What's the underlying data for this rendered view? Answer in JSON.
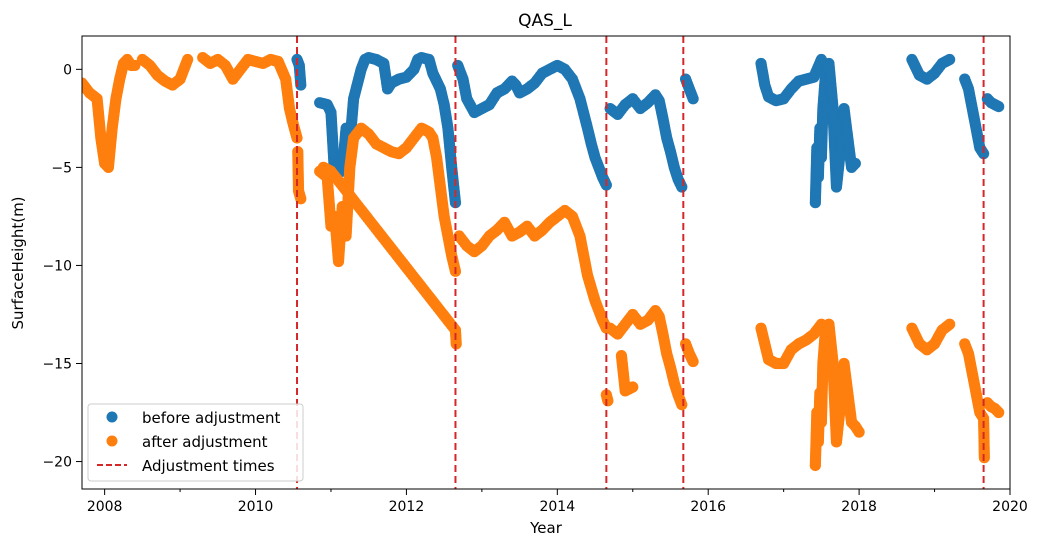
{
  "chart_data": {
    "type": "scatter",
    "title": "QAS_L",
    "xlabel": "Year",
    "ylabel": "SurfaceHeight(m)",
    "xlim": [
      2007.7,
      2020.0
    ],
    "ylim": [
      -21.4,
      1.7
    ],
    "x_ticks": [
      2008,
      2010,
      2012,
      2014,
      2016,
      2018,
      2020
    ],
    "x_tick_labels": [
      "2008",
      "2010",
      "2012",
      "2014",
      "2016",
      "2018",
      "2020"
    ],
    "y_ticks": [
      0,
      -5,
      -10,
      -15,
      -20
    ],
    "y_tick_labels": [
      "0",
      "−5",
      "−10",
      "−15",
      "−20"
    ],
    "legend_position": "lower-left",
    "legend": [
      {
        "label": "before adjustment",
        "color": "#1f77b4",
        "kind": "marker"
      },
      {
        "label": "after adjustment",
        "color": "#ff7f0e",
        "kind": "marker"
      },
      {
        "label": "Adjustment times",
        "color": "#d62728",
        "kind": "dashed-line"
      }
    ],
    "adjustment_times": [
      2010.55,
      2012.65,
      2014.65,
      2015.67,
      2019.65
    ],
    "series": [
      {
        "name": "before adjustment",
        "color": "#1f77b4",
        "segments": [
          {
            "x": [
              2010.55,
              2010.58,
              2010.6
            ],
            "y": [
              0.5,
              0.2,
              -0.8
            ]
          },
          {
            "x": [
              2010.85,
              2010.95,
              2011.0,
              2011.05,
              2011.1,
              2011.15,
              2011.2,
              2011.25,
              2011.3,
              2011.4,
              2011.45,
              2011.5,
              2011.6,
              2011.7,
              2011.75,
              2011.8,
              2011.9,
              2012.0,
              2012.1,
              2012.15,
              2012.2,
              2012.3,
              2012.35,
              2012.4,
              2012.45,
              2012.5,
              2012.55,
              2012.6,
              2012.65
            ],
            "y": [
              -1.7,
              -1.8,
              -2.2,
              -5.5,
              -4.5,
              -5.2,
              -3.0,
              -3.8,
              -1.5,
              0.0,
              0.5,
              0.6,
              0.5,
              0.3,
              -1.0,
              -0.7,
              -0.5,
              -0.4,
              0.0,
              0.5,
              0.6,
              0.5,
              -0.2,
              -0.6,
              -1.0,
              -1.8,
              -3.0,
              -5.0,
              -6.8
            ]
          },
          {
            "x": [
              2012.68,
              2012.7,
              2012.75,
              2012.8,
              2012.9,
              2013.0,
              2013.1,
              2013.2,
              2013.3,
              2013.4,
              2013.45,
              2013.5,
              2013.6,
              2013.7,
              2013.8,
              2013.9,
              2014.0,
              2014.1,
              2014.2,
              2014.3,
              2014.4,
              2014.45,
              2014.5,
              2014.55,
              2014.6,
              2014.65
            ],
            "y": [
              0.2,
              0.0,
              -0.5,
              -1.5,
              -2.2,
              -2.0,
              -1.8,
              -1.2,
              -1.0,
              -0.6,
              -0.8,
              -1.2,
              -1.0,
              -0.7,
              -0.2,
              0.0,
              0.2,
              0.0,
              -0.5,
              -1.5,
              -3.0,
              -3.8,
              -4.5,
              -5.0,
              -5.5,
              -5.9
            ]
          },
          {
            "x": [
              2014.7,
              2014.8,
              2014.9,
              2015.0,
              2015.1,
              2015.2,
              2015.3,
              2015.35,
              2015.4,
              2015.45,
              2015.5,
              2015.55,
              2015.6,
              2015.65
            ],
            "y": [
              -2.0,
              -2.3,
              -1.8,
              -1.5,
              -2.0,
              -1.7,
              -1.3,
              -1.6,
              -2.5,
              -3.5,
              -4.2,
              -5.0,
              -5.6,
              -6.0
            ]
          },
          {
            "x": [
              2015.7,
              2015.75,
              2015.8
            ],
            "y": [
              -0.5,
              -1.0,
              -1.5
            ]
          },
          {
            "x": [
              2016.7,
              2016.75,
              2016.8,
              2016.9,
              2017.0,
              2017.1,
              2017.2,
              2017.3,
              2017.4,
              2017.5
            ],
            "y": [
              0.3,
              -0.8,
              -1.4,
              -1.6,
              -1.5,
              -1.0,
              -0.6,
              -0.5,
              -0.4,
              0.5
            ]
          },
          {
            "x": [
              2017.42,
              2017.44,
              2017.46,
              2017.48,
              2017.5,
              2017.52,
              2017.55,
              2017.6,
              2017.65,
              2017.7,
              2017.75,
              2017.8,
              2017.85,
              2017.9,
              2017.95
            ],
            "y": [
              -6.8,
              -4.0,
              -5.5,
              -3.0,
              -4.5,
              -2.0,
              -0.5,
              0.3,
              -1.8,
              -6.0,
              -4.2,
              -2.0,
              -3.5,
              -5.0,
              -4.8
            ]
          },
          {
            "x": [
              2018.7,
              2018.8,
              2018.9,
              2019.0,
              2019.1,
              2019.2
            ],
            "y": [
              0.5,
              -0.3,
              -0.5,
              -0.2,
              0.3,
              0.5
            ]
          },
          {
            "x": [
              2019.4,
              2019.45,
              2019.5,
              2019.55,
              2019.6,
              2019.65
            ],
            "y": [
              -0.5,
              -1.0,
              -2.0,
              -3.0,
              -4.0,
              -4.3
            ]
          },
          {
            "x": [
              2019.7,
              2019.75,
              2019.8,
              2019.85
            ],
            "y": [
              -1.5,
              -1.7,
              -1.8,
              -1.9
            ]
          }
        ]
      },
      {
        "name": "after adjustment",
        "color": "#ff7f0e",
        "segments": [
          {
            "x": [
              2007.7,
              2007.8,
              2007.9,
              2007.95,
              2008.0,
              2008.05,
              2008.1,
              2008.15,
              2008.2,
              2008.25,
              2008.3,
              2008.35,
              2008.4
            ],
            "y": [
              -0.7,
              -1.2,
              -1.5,
              -3.5,
              -4.8,
              -5.0,
              -3.0,
              -1.5,
              -0.5,
              0.3,
              0.5,
              0.2,
              0.2
            ]
          },
          {
            "x": [
              2008.5,
              2008.6,
              2008.7,
              2008.8,
              2008.9,
              2009.0,
              2009.1
            ],
            "y": [
              0.5,
              0.2,
              -0.3,
              -0.6,
              -0.8,
              -0.5,
              0.5
            ]
          },
          {
            "x": [
              2009.3,
              2009.4,
              2009.5,
              2009.6,
              2009.7,
              2009.8,
              2009.9,
              2010.0,
              2010.1,
              2010.2,
              2010.3,
              2010.4,
              2010.45,
              2010.5,
              2010.55
            ],
            "y": [
              0.6,
              0.3,
              0.5,
              0.2,
              -0.5,
              0.0,
              0.5,
              0.4,
              0.3,
              0.5,
              0.4,
              -0.5,
              -2.0,
              -2.8,
              -3.5
            ]
          },
          {
            "x": [
              2010.56,
              2010.57,
              2010.6
            ],
            "y": [
              -4.2,
              -6.2,
              -6.6
            ]
          },
          {
            "x": [
              2010.85,
              2010.95,
              2011.0,
              2011.05,
              2011.1,
              2011.15,
              2011.2,
              2011.25,
              2011.3,
              2011.4,
              2011.5,
              2011.6,
              2011.7,
              2011.8,
              2011.9,
              2012.0,
              2012.1,
              2012.2,
              2012.3,
              2012.35,
              2012.4,
              2012.45,
              2012.5,
              2012.55,
              2012.6,
              2012.65
            ],
            "y": [
              -5.2,
              -5.5,
              -8.0,
              -7.5,
              -9.8,
              -7.0,
              -8.5,
              -5.0,
              -3.5,
              -3.0,
              -3.3,
              -3.8,
              -4.0,
              -4.2,
              -4.3,
              -4.0,
              -3.5,
              -3.0,
              -3.2,
              -3.5,
              -4.5,
              -6.0,
              -7.5,
              -8.5,
              -9.5,
              -10.3
            ]
          },
          {
            "x": [
              2010.9,
              2011.0,
              2012.65,
              2012.66
            ],
            "y": [
              -5.0,
              -5.2,
              -13.3,
              -14.0
            ]
          },
          {
            "x": [
              2012.7,
              2012.8,
              2012.9,
              2013.0,
              2013.1,
              2013.2,
              2013.3,
              2013.4,
              2013.5,
              2013.6,
              2013.7,
              2013.8,
              2013.9,
              2014.0,
              2014.1,
              2014.2,
              2014.3,
              2014.4,
              2014.5,
              2014.6,
              2014.65
            ],
            "y": [
              -8.5,
              -9.0,
              -9.3,
              -9.0,
              -8.5,
              -8.2,
              -7.8,
              -8.5,
              -8.3,
              -8.0,
              -8.5,
              -8.2,
              -7.8,
              -7.5,
              -7.2,
              -7.5,
              -8.5,
              -10.5,
              -11.8,
              -12.8,
              -13.2
            ]
          },
          {
            "x": [
              2014.65,
              2014.67
            ],
            "y": [
              -16.6,
              -16.9
            ]
          },
          {
            "x": [
              2014.7,
              2014.8,
              2014.9,
              2015.0,
              2015.1,
              2015.2,
              2015.3,
              2015.35,
              2015.4,
              2015.45,
              2015.5,
              2015.55,
              2015.6,
              2015.65
            ],
            "y": [
              -13.2,
              -13.5,
              -13.0,
              -12.5,
              -13.0,
              -12.8,
              -12.3,
              -12.6,
              -13.5,
              -14.5,
              -15.2,
              -16.0,
              -16.6,
              -17.1
            ]
          },
          {
            "x": [
              2014.85,
              2014.9,
              2015.0
            ],
            "y": [
              -14.6,
              -16.4,
              -16.2
            ]
          },
          {
            "x": [
              2015.7,
              2015.75,
              2015.8
            ],
            "y": [
              -14.0,
              -14.5,
              -14.9
            ]
          },
          {
            "x": [
              2016.7,
              2016.75,
              2016.8,
              2016.9,
              2017.0,
              2017.1,
              2017.2,
              2017.3,
              2017.4,
              2017.5
            ],
            "y": [
              -13.2,
              -14.0,
              -14.8,
              -15.0,
              -15.0,
              -14.3,
              -14.0,
              -13.8,
              -13.5,
              -13.0
            ]
          },
          {
            "x": [
              2017.42,
              2017.44,
              2017.46,
              2017.48,
              2017.5,
              2017.52,
              2017.55,
              2017.6,
              2017.65,
              2017.7,
              2017.75,
              2017.8,
              2017.85,
              2017.9,
              2017.95,
              2018.0
            ],
            "y": [
              -20.2,
              -17.5,
              -19.0,
              -16.5,
              -18.0,
              -15.0,
              -13.5,
              -13.0,
              -14.8,
              -19.0,
              -17.2,
              -15.0,
              -16.5,
              -18.0,
              -18.2,
              -18.5
            ]
          },
          {
            "x": [
              2018.7,
              2018.8,
              2018.9,
              2019.0,
              2019.1,
              2019.2
            ],
            "y": [
              -13.2,
              -14.0,
              -14.3,
              -14.0,
              -13.3,
              -13.0
            ]
          },
          {
            "x": [
              2019.4,
              2019.45,
              2019.5,
              2019.55,
              2019.6,
              2019.65,
              2019.66
            ],
            "y": [
              -14.0,
              -14.5,
              -15.5,
              -16.5,
              -17.5,
              -17.8,
              -19.8
            ]
          },
          {
            "x": [
              2019.7,
              2019.75,
              2019.8,
              2019.85
            ],
            "y": [
              -17.0,
              -17.2,
              -17.3,
              -17.5
            ]
          }
        ]
      }
    ]
  }
}
